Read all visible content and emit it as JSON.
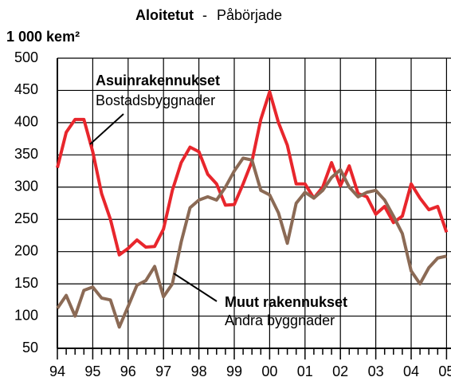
{
  "chart_data": {
    "type": "line",
    "title": [
      "Aloitetut",
      "-",
      "Påbörjade"
    ],
    "y_label": "1 000 kem²",
    "categories": [
      "94",
      null,
      null,
      null,
      "95",
      null,
      null,
      null,
      "96",
      null,
      null,
      null,
      "97",
      null,
      null,
      null,
      "98",
      null,
      null,
      null,
      "99",
      null,
      null,
      null,
      "00",
      null,
      null,
      null,
      "01",
      null,
      null,
      null,
      "02",
      null,
      null,
      null,
      "03",
      null,
      null,
      null,
      "04",
      null,
      null,
      null,
      "05"
    ],
    "series": [
      {
        "name": "Asuinrakennukset",
        "label": "Bostadsbyggnader",
        "color": "#e8262c",
        "values": [
          330,
          385,
          405,
          405,
          355,
          290,
          250,
          195,
          205,
          218,
          207,
          208,
          235,
          295,
          338,
          362,
          355,
          320,
          305,
          272,
          273,
          305,
          340,
          405,
          448,
          400,
          365,
          305,
          305,
          283,
          300,
          338,
          302,
          333,
          290,
          285,
          258,
          270,
          245,
          255,
          305,
          283,
          265,
          270,
          230
        ]
      },
      {
        "name": "Muut rakennukset",
        "label": "Andra byggnader",
        "color": "#8b6a55",
        "values": [
          112,
          132,
          100,
          140,
          145,
          128,
          125,
          83,
          115,
          148,
          155,
          177,
          130,
          150,
          215,
          268,
          280,
          285,
          280,
          300,
          325,
          345,
          342,
          295,
          288,
          260,
          213,
          275,
          292,
          283,
          295,
          315,
          327,
          300,
          285,
          292,
          295,
          280,
          255,
          228,
          170,
          150,
          175,
          190,
          193
        ]
      }
    ],
    "ylim": [
      50,
      500
    ],
    "yticks": [
      50,
      100,
      150,
      200,
      250,
      300,
      350,
      400,
      450,
      500
    ],
    "grid": true
  }
}
